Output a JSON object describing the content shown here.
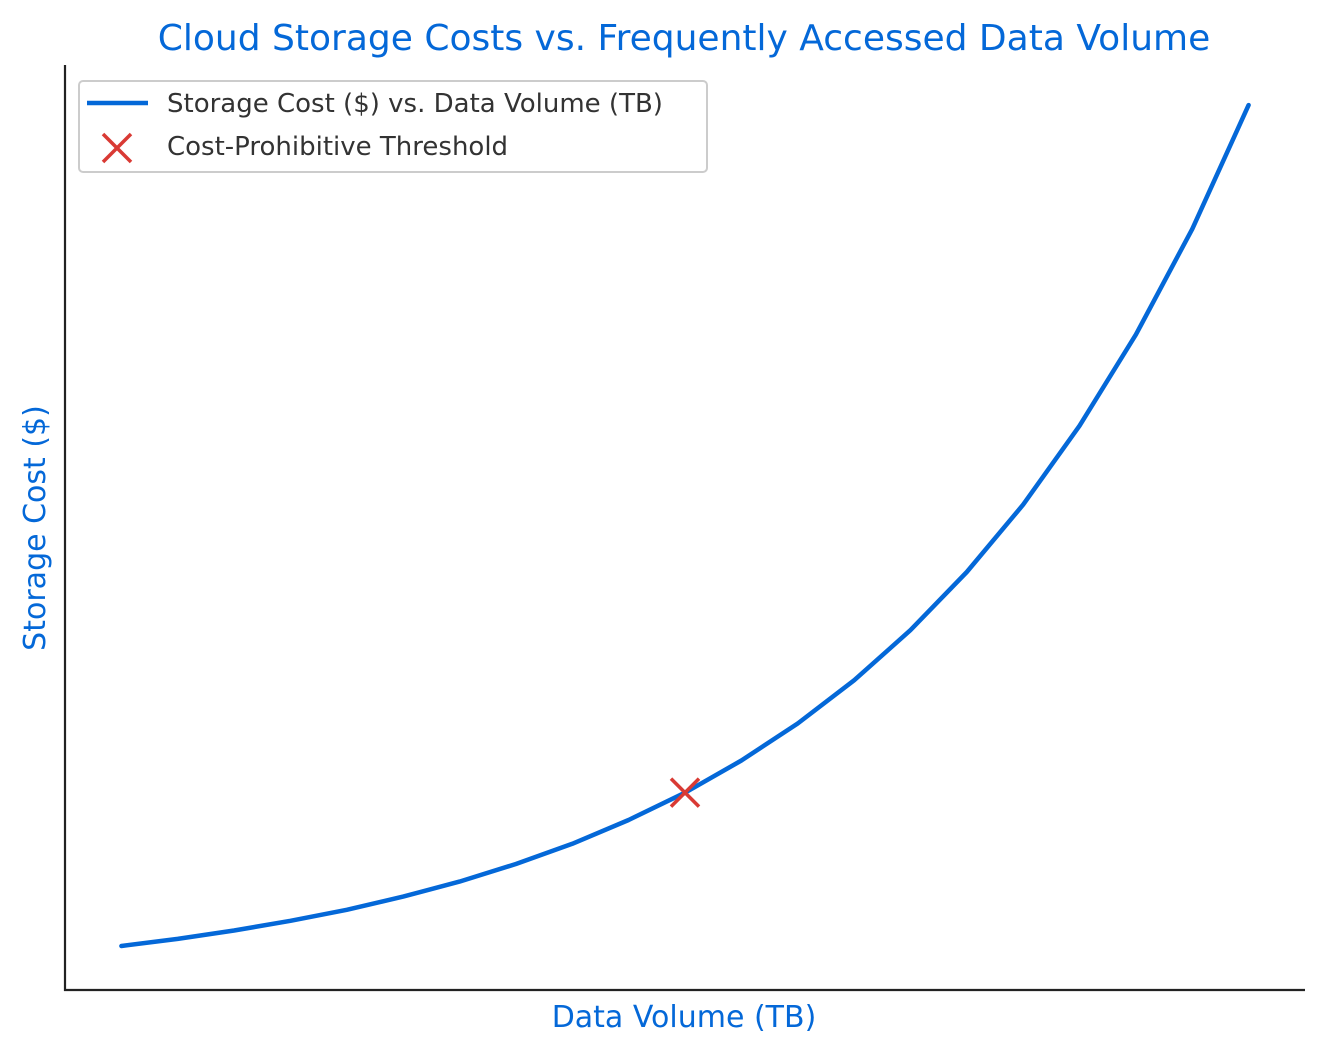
{
  "chart_data": {
    "type": "line",
    "title": "Cloud Storage Costs vs. Frequently Accessed Data Volume",
    "xlabel": "Data Volume (TB)",
    "ylabel": "Storage Cost ($)",
    "x_ticks_shown": false,
    "y_ticks_shown": false,
    "grid": false,
    "legend_placement": "top-left",
    "series": [
      {
        "name": "Storage Cost ($) vs. Data Volume (TB)",
        "style": "line",
        "color": "#0468d8",
        "x": [
          0,
          0.05,
          0.1,
          0.15,
          0.2,
          0.25,
          0.3,
          0.35,
          0.4,
          0.45,
          0.5,
          0.55,
          0.6,
          0.65,
          0.7,
          0.75,
          0.8,
          0.85,
          0.9,
          0.95,
          1.0
        ],
        "values": [
          1.0,
          1.16,
          1.35,
          1.57,
          1.82,
          2.12,
          2.46,
          2.86,
          3.32,
          3.86,
          4.48,
          5.21,
          6.05,
          7.03,
          8.17,
          9.49,
          11.02,
          12.81,
          14.88,
          17.28,
          20.09
        ]
      },
      {
        "name": "Cost-Prohibitive Threshold",
        "style": "marker-x",
        "color": "#d93a34",
        "x": [
          0.5
        ],
        "values": [
          4.48
        ]
      }
    ],
    "xlim": [
      -0.05,
      1.05
    ],
    "ylim": [
      0.0,
      21.0
    ]
  }
}
